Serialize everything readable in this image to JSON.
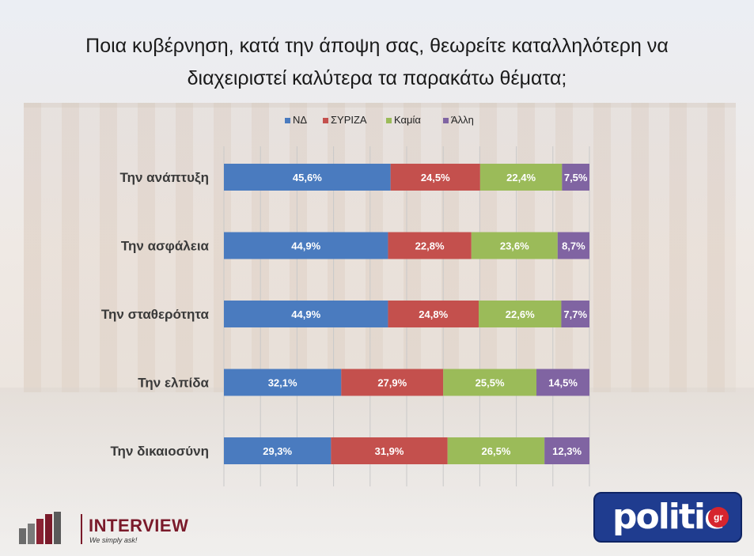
{
  "title_lines": [
    "Ποια κυβέρνηση, κατά την άποψη σας, θεωρείτε καταλληλότερη να",
    "διαχειριστεί καλύτερα τα παρακάτω θέματα;"
  ],
  "logos": {
    "interview_name": "INTERVIEW",
    "interview_slogan": "We simply ask!",
    "politic_word": "politic",
    "politic_suffix": "gr"
  },
  "colors": {
    "nd": "#4a7bbf",
    "syriza": "#c4504d",
    "kamia": "#9bbb59",
    "alli": "#8064a2"
  },
  "chart_data": {
    "type": "bar",
    "orientation": "horizontal",
    "stacked": true,
    "title": "Ποια κυβέρνηση, κατά την άποψη σας, θεωρείτε καταλληλότερη να διαχειριστεί καλύτερα τα παρακάτω θέματα;",
    "legend_position": "top",
    "categories": [
      "Την ανάπτυξη",
      "Την ασφάλεια",
      "Την σταθερότητα",
      "Την ελπίδα",
      "Την δικαιοσύνη"
    ],
    "series": [
      {
        "name": "ΝΔ",
        "color": "#4a7bbf",
        "values": [
          45.6,
          44.9,
          44.9,
          32.1,
          29.3
        ],
        "labels": [
          "45,6%",
          "44,9%",
          "44,9%",
          "32,1%",
          "29,3%"
        ]
      },
      {
        "name": "ΣΥΡΙΖΑ",
        "color": "#c4504d",
        "values": [
          24.5,
          22.8,
          24.8,
          27.9,
          31.9
        ],
        "labels": [
          "24,5%",
          "22,8%",
          "24,8%",
          "27,9%",
          "31,9%"
        ]
      },
      {
        "name": "Καμία",
        "color": "#9bbb59",
        "values": [
          22.4,
          23.6,
          22.6,
          25.5,
          26.5
        ],
        "labels": [
          "22,4%",
          "23,6%",
          "22,6%",
          "25,5%",
          "26,5%"
        ]
      },
      {
        "name": "Άλλη",
        "color": "#8064a2",
        "values": [
          7.5,
          8.7,
          7.7,
          14.5,
          12.3
        ],
        "labels": [
          "7,5%",
          "8,7%",
          "7,7%",
          "14,5%",
          "12,3%"
        ]
      }
    ],
    "xlim": [
      0,
      100
    ],
    "grid": "vertical"
  }
}
